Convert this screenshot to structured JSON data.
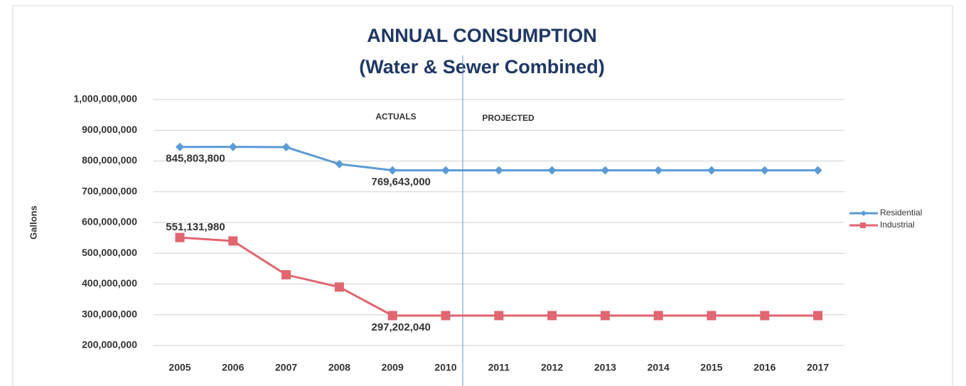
{
  "chart_data": {
    "type": "line",
    "title": "ANNUAL CONSUMPTION",
    "subtitle": "(Water & Sewer Combined)",
    "y_label": "Gallons",
    "annotations": [
      "ACTUALS",
      "PROJECTED"
    ],
    "categories": [
      "2005",
      "2006",
      "2007",
      "2008",
      "2009",
      "2010",
      "2011",
      "2012",
      "2013",
      "2014",
      "2015",
      "2016",
      "2017"
    ],
    "series": [
      {
        "name": "Residential",
        "color": "#5b9bd5",
        "marker": "diamond",
        "values": [
          845803800,
          846000000,
          845000000,
          790000000,
          769643000,
          769643000,
          769643000,
          769643000,
          769643000,
          769643000,
          769643000,
          769643000,
          769643000
        ],
        "value_labels": [
          "845,803,800",
          null,
          null,
          null,
          "769,643,000",
          null,
          null,
          null,
          null,
          null,
          null,
          null,
          null
        ]
      },
      {
        "name": "Industrial",
        "color": "#e06670",
        "marker": "square",
        "values": [
          551131980,
          540000000,
          430000000,
          390000000,
          297202040,
          297202040,
          297202040,
          297202040,
          297202040,
          297202040,
          297202040,
          297202040,
          297202040
        ],
        "value_labels": [
          "551,131,980",
          null,
          null,
          null,
          "297,202,040",
          null,
          null,
          null,
          null,
          null,
          null,
          null,
          null
        ]
      }
    ],
    "ylim": [
      200000000,
      1000000000
    ],
    "yticks": [
      {
        "value": 200000000,
        "label": "200,000,000"
      },
      {
        "value": 300000000,
        "label": "300,000,000"
      },
      {
        "value": 400000000,
        "label": "400,000,000"
      },
      {
        "value": 500000000,
        "label": "500,000,000"
      },
      {
        "value": 600000000,
        "label": "600,000,000"
      },
      {
        "value": 700000000,
        "label": "700,000,000"
      },
      {
        "value": 800000000,
        "label": "800,000,000"
      },
      {
        "value": 900000000,
        "label": "900,000,000"
      },
      {
        "value": 1000000000,
        "label": "1,000,000,000"
      }
    ],
    "grid": true,
    "legend": "right"
  }
}
